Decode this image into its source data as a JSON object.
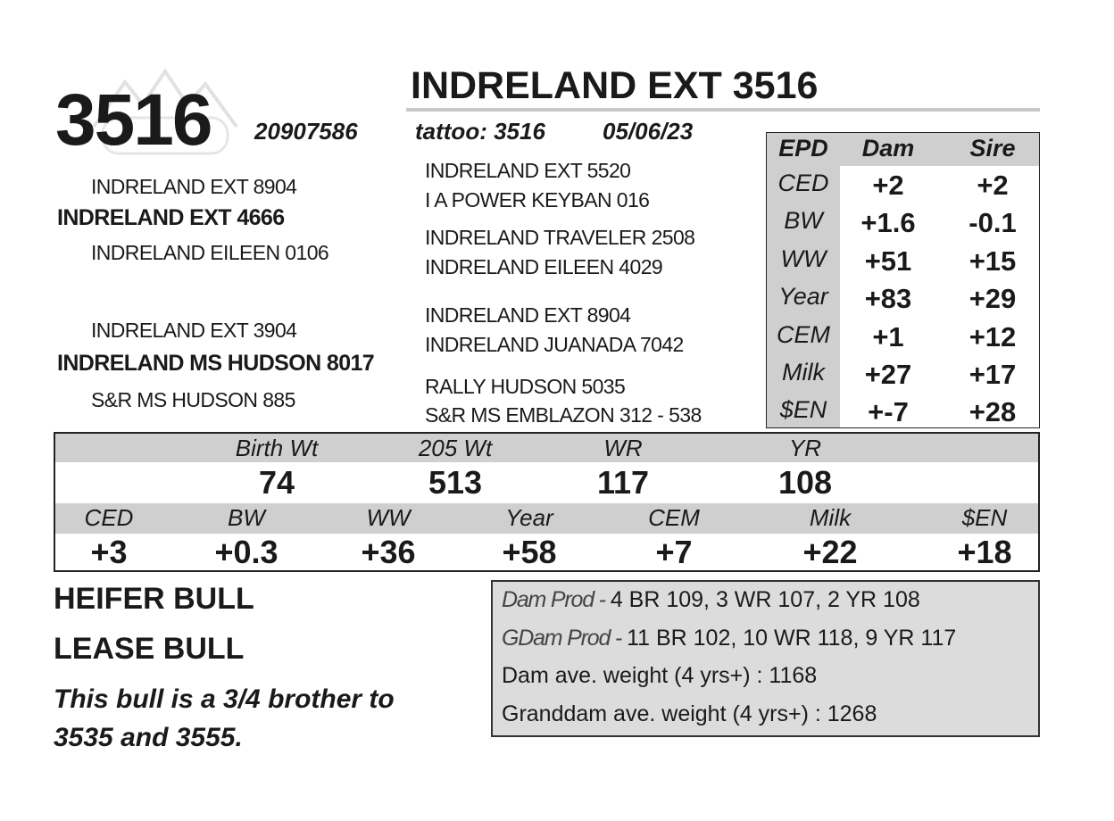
{
  "lot": "3516",
  "name": "INDRELAND EXT 3516",
  "registration": "20907586",
  "tattoo": "tattoo: 3516",
  "birth_date": "05/06/23",
  "pedigree": {
    "sire_sire": "INDRELAND EXT 8904",
    "sire": "INDRELAND EXT 4666",
    "sire_dam": "INDRELAND EILEEN 0106",
    "dam_sire": "INDRELAND EXT 3904",
    "dam": "INDRELAND MS HUDSON 8017",
    "dam_dam": "S&R MS HUDSON 885",
    "third_generation": [
      "INDRELAND EXT 5520",
      "I A POWER KEYBAN 016",
      "INDRELAND TRAVELER 2508",
      "INDRELAND EILEEN 4029",
      "INDRELAND EXT 8904",
      "INDRELAND JUANADA 7042",
      "RALLY HUDSON 5035",
      "S&R MS EMBLAZON 312 - 538"
    ]
  },
  "parent_epd": {
    "header": [
      "EPD",
      "Dam",
      "Sire"
    ],
    "rows": [
      [
        "CED",
        "+2",
        "+2"
      ],
      [
        "BW",
        "+1.6",
        "-0.1"
      ],
      [
        "WW",
        "+51",
        "+15"
      ],
      [
        "Year",
        "+83",
        "+29"
      ],
      [
        "CEM",
        "+1",
        "+12"
      ],
      [
        "Milk",
        "+27",
        "+17"
      ],
      [
        "$EN",
        "+-7",
        "+28"
      ]
    ]
  },
  "performance": {
    "header": [
      "Birth Wt",
      "205 Wt",
      "WR",
      "YR"
    ],
    "values": [
      "74",
      "513",
      "117",
      "108"
    ]
  },
  "epd": {
    "header": [
      "CED",
      "BW",
      "WW",
      "Year",
      "CEM",
      "Milk",
      "$EN"
    ],
    "values": [
      "+3",
      "+0.3",
      "+36",
      "+58",
      "+7",
      "+22",
      "+18"
    ]
  },
  "notes": [
    "HEIFER BULL",
    "LEASE BULL"
  ],
  "remark": "This bull is a 3/4 brother to 3535 and 3555.",
  "production": [
    {
      "label": "Dam Prod -",
      "text": "4 BR 109, 3 WR 107, 2 YR 108"
    },
    {
      "label": "GDam Prod -",
      "text": "11 BR 102, 10 WR 118, 9 YR 117"
    },
    {
      "text": "Dam ave. weight (4 yrs+) : 1168"
    },
    {
      "text": "Granddam ave. weight (4 yrs+) : 1268"
    }
  ]
}
